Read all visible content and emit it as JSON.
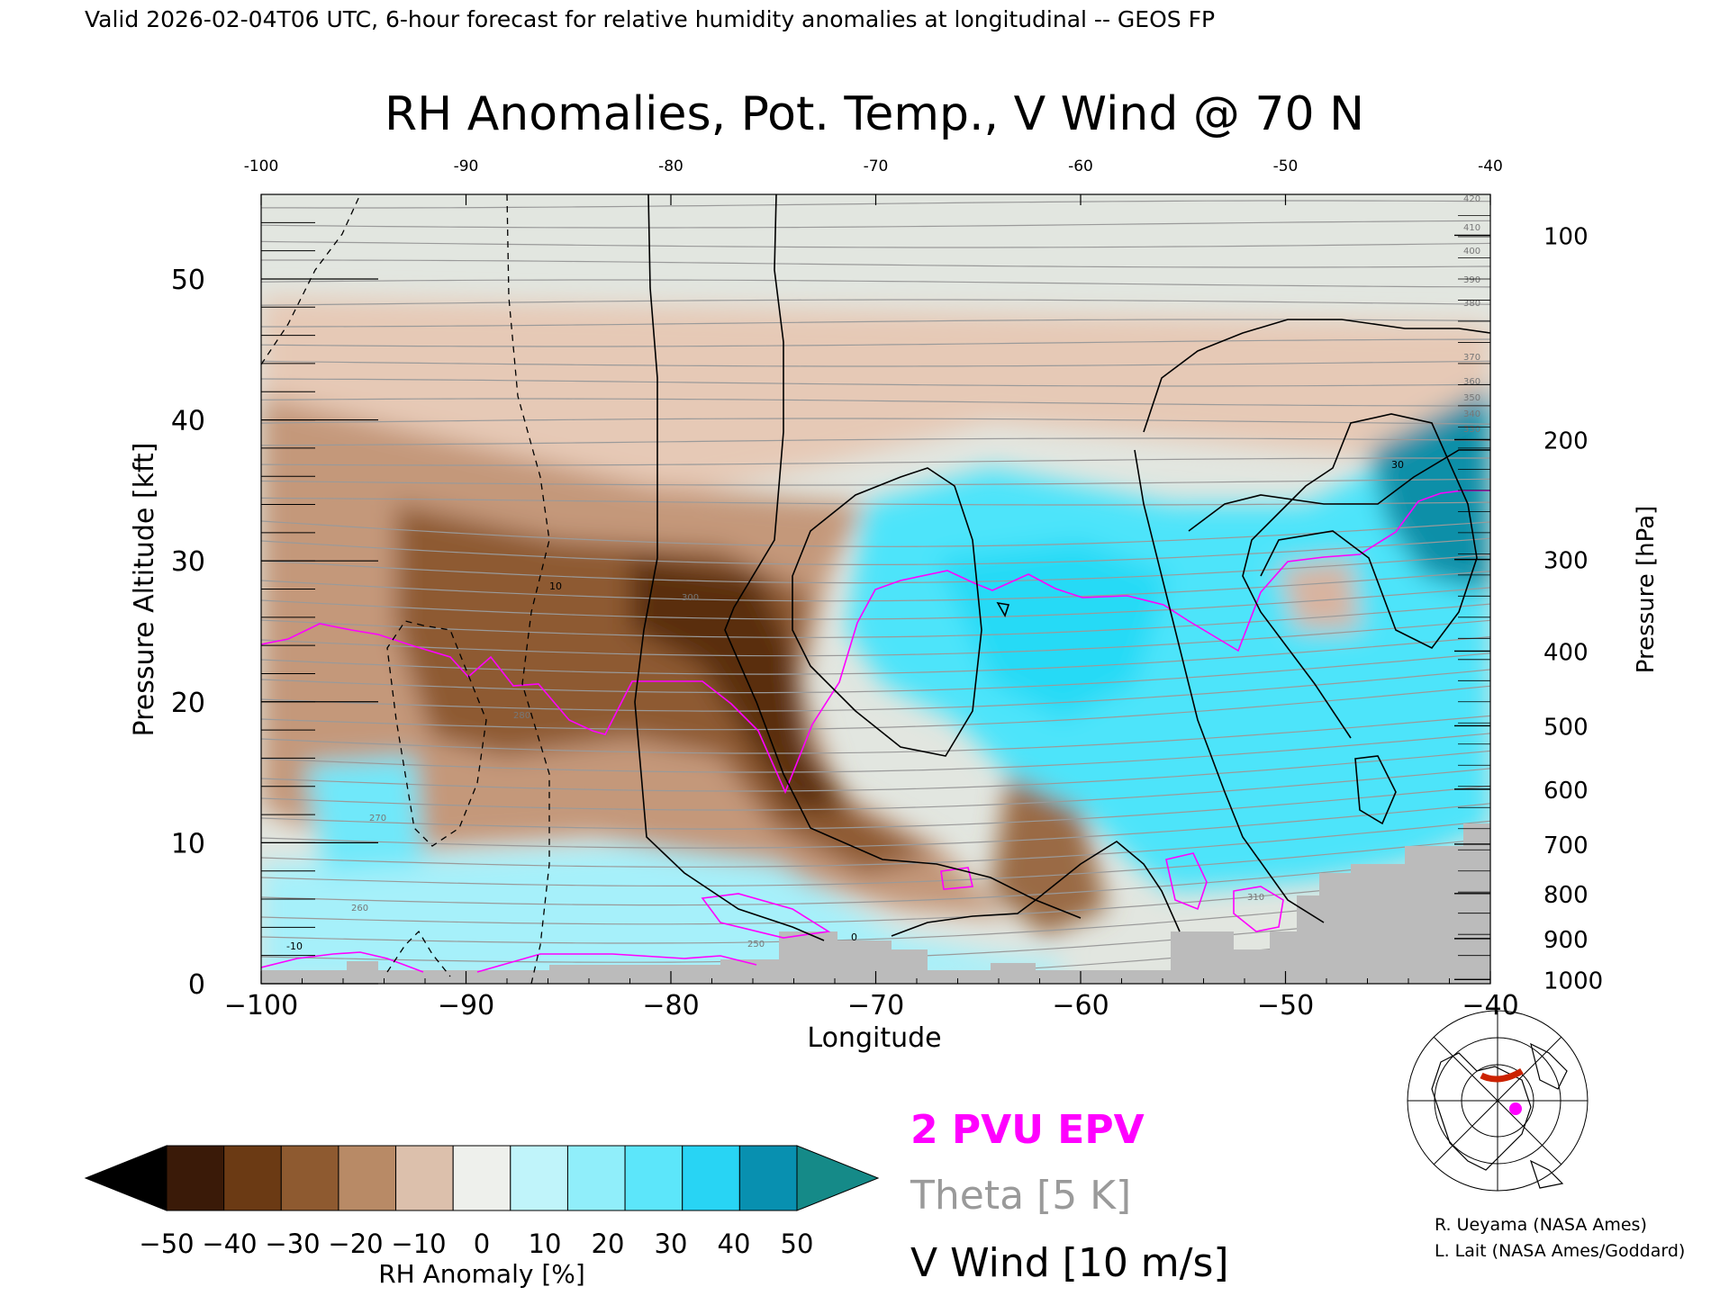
{
  "header": {
    "valid_line": "Valid 2026-02-04T06 UTC, 6-hour forecast for relative humidity anomalies at longitudinal -- GEOS FP"
  },
  "chart_data": {
    "type": "heatmap",
    "title": "RH Anomalies, Pot. Temp., V Wind @ 70 N",
    "xlabel": "Longitude",
    "ylabel_left": "Pressure Altitude [kft]",
    "ylabel_right": "Pressure [hPa]",
    "xlim": [
      -100,
      -40
    ],
    "ylim_kft": [
      0,
      56
    ],
    "x_ticks": [
      -100,
      -90,
      -80,
      -70,
      -60,
      -50,
      -40
    ],
    "x_tick_labels": [
      "−100",
      "−90",
      "−80",
      "−70",
      "−60",
      "−50",
      "−40"
    ],
    "top_tick_labels": [
      "-100",
      "-90",
      "-80",
      "-70",
      "-60",
      "-50",
      "-40"
    ],
    "y_ticks_kft": [
      0,
      10,
      20,
      30,
      40,
      50
    ],
    "y_tick_labels": [
      "0",
      "10",
      "20",
      "30",
      "40",
      "50"
    ],
    "pressure_ticks": [
      {
        "hPa": "100",
        "kft": 53.1
      },
      {
        "hPa": "200",
        "kft": 38.6
      },
      {
        "hPa": "300",
        "kft": 30.1
      },
      {
        "hPa": "400",
        "kft": 23.6
      },
      {
        "hPa": "500",
        "kft": 18.3
      },
      {
        "hPa": "600",
        "kft": 13.8
      },
      {
        "hPa": "700",
        "kft": 9.9
      },
      {
        "hPa": "800",
        "kft": 6.4
      },
      {
        "hPa": "900",
        "kft": 3.2
      },
      {
        "hPa": "1000",
        "kft": 0.3
      }
    ],
    "colorbar": {
      "label": "RH Anomaly [%]",
      "ticks": [
        "−50",
        "−40",
        "−30",
        "−20",
        "−10",
        "0",
        "10",
        "20",
        "30",
        "40",
        "50"
      ],
      "colors": [
        "#000000",
        "#3a1a08",
        "#6b3a14",
        "#8e5a30",
        "#b88a66",
        "#dcc0ac",
        "#eef0ec",
        "#c0f4fa",
        "#90eefa",
        "#5ce6fa",
        "#28d4f4",
        "#0890b0",
        "#158a88"
      ]
    },
    "legend": [
      {
        "label": "2 PVU EPV",
        "color": "#ff00ff"
      },
      {
        "label": "Theta [5 K]",
        "color": "#9a9a9a"
      },
      {
        "label": "V Wind [10 m/s]",
        "color": "#000000"
      }
    ],
    "theta_labels": [
      "250",
      "260",
      "270",
      "280",
      "300",
      "310",
      "330",
      "340",
      "350",
      "360",
      "370",
      "380",
      "390",
      "400",
      "410",
      "420"
    ],
    "wind_labels": [
      "-10",
      "10",
      "30",
      "0"
    ],
    "terrain_color": "#bbbbbb",
    "credits": [
      "R. Ueyama (NASA Ames)",
      "L. Lait (NASA Ames/Goddard)"
    ]
  }
}
